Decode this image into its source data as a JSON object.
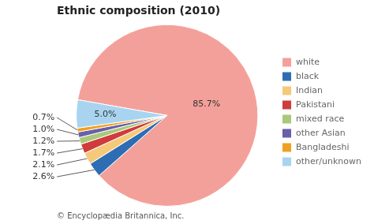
{
  "chart_data": {
    "type": "pie",
    "title": "Ethnic composition (2010)",
    "annotations": [
      "© Encyclopædia Britannica, Inc."
    ],
    "categories": [
      "white",
      "black",
      "Indian",
      "Pakistani",
      "mixed race",
      "other Asian",
      "Bangladeshi",
      "other/unknown"
    ],
    "values": [
      85.7,
      2.6,
      2.1,
      1.7,
      1.2,
      1.0,
      0.7,
      5.0
    ],
    "value_labels": [
      "85.7%",
      "2.6%",
      "2.1%",
      "1.7%",
      "1.2%",
      "1.0%",
      "0.7%",
      "5.0%"
    ],
    "colors": [
      "#F4A09A",
      "#2E6DB4",
      "#F5C97A",
      "#D03B3B",
      "#A8C97A",
      "#6A5FA8",
      "#F0A020",
      "#A8D4F0"
    ],
    "data_labels": true,
    "legend": "right"
  }
}
